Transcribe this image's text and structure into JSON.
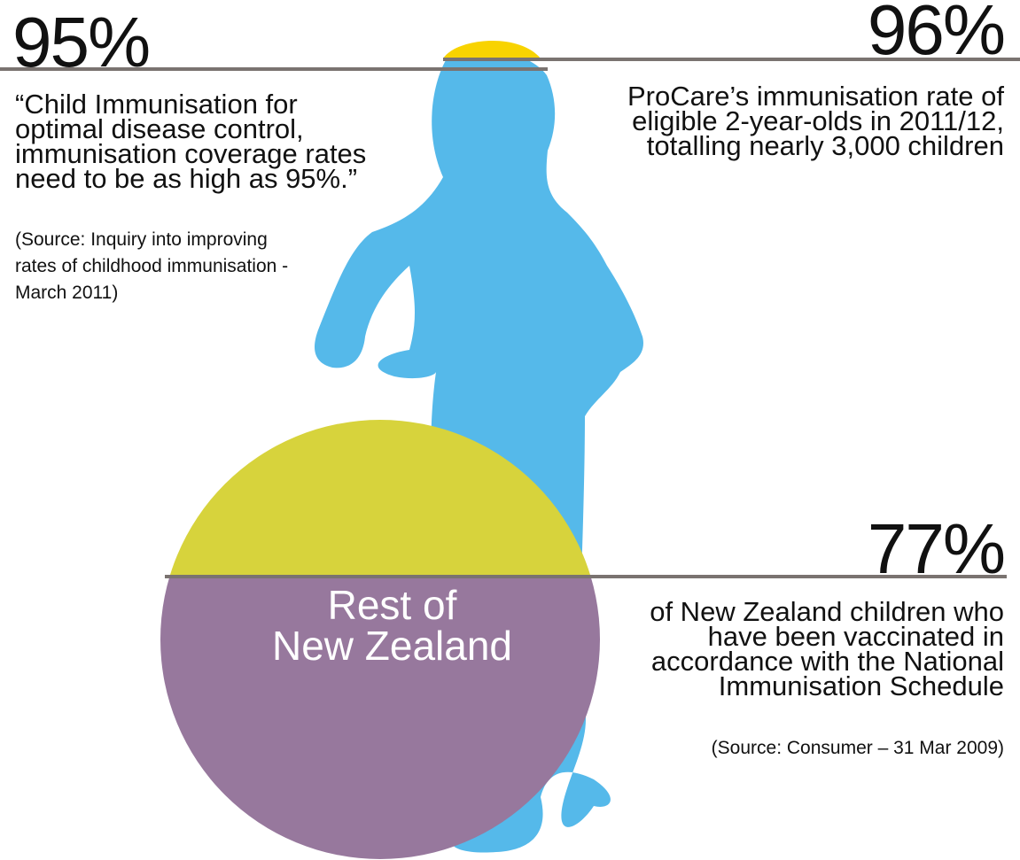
{
  "colors": {
    "child_silhouette": "#55b9ea",
    "hair_cap": "#f8d300",
    "circle_top": "#d7d33c",
    "circle_bottom": "#97789d",
    "divider": "#7a7370",
    "text": "#111111"
  },
  "stats": {
    "left": {
      "value": "95%",
      "quote": "“Child Immunisation for\noptimal disease control,\nimmunisation coverage rates\nneed to be as high as 95%.”",
      "source": "(Source: Inquiry into improving\nrates of childhood immunisation -\nMarch 2011)"
    },
    "top_right": {
      "value": "96%",
      "description": "ProCare’s immunisation rate of\neligible 2-year-olds in 2011/12,\ntotalling nearly 3,000 children"
    },
    "bottom_right": {
      "value": "77%",
      "description": "of New Zealand children who\nhave been vaccinated in\naccordance with the National\nImmunisation Schedule",
      "source": "(Source: Consumer – 31 Mar 2009)"
    }
  },
  "circle": {
    "label": "Rest of\nNew Zealand",
    "icon": "pie-circle-icon"
  },
  "child": {
    "icon": "child-silhouette-icon"
  }
}
